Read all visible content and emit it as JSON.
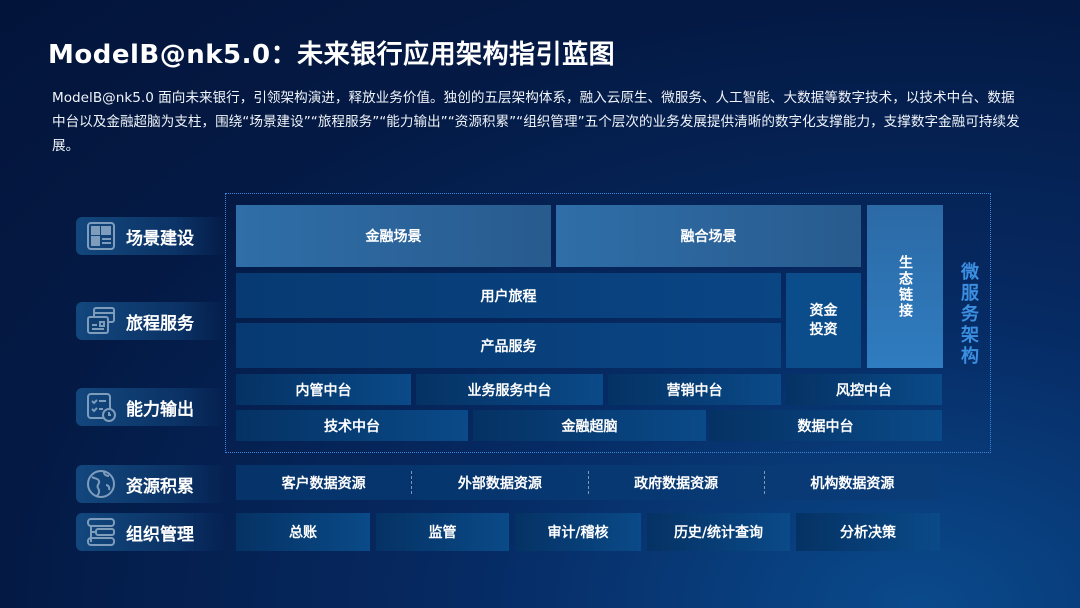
{
  "title": "ModelB@nk5.0：未来银行应用架构指引蓝图",
  "description": "ModelB@nk5.0 面向未来银行，引领架构演进，释放业务价值。独创的五层架构体系，融入云原生、微服务、人工智能、大数据等数字技术，以技术中台、数据中台以及金融超脑为支柱，围绕“场景建设”“旅程服务”“能力输出”“资源积累”“组织管理”五个层次的业务发展提供清晰的数字化支撑能力，支撑数字金融可持续发展。",
  "layers": [
    {
      "label": "场景建设",
      "icon": "dashboard-icon"
    },
    {
      "label": "旅程服务",
      "icon": "cards-icon"
    },
    {
      "label": "能力输出",
      "icon": "checklist-clock-icon"
    },
    {
      "label": "资源积累",
      "icon": "globe-icon"
    },
    {
      "label": "组织管理",
      "icon": "flowchart-icon"
    }
  ],
  "blocks": {
    "scene_finance": "金融场景",
    "scene_fusion": "融合场景",
    "eco_link": "生态链接",
    "user_journey": "用户旅程",
    "product_service": "产品服务",
    "fund_invest": "资金投资",
    "internal_mgmt": "内管中台",
    "biz_service": "业务服务中台",
    "marketing": "营销中台",
    "risk": "风控中台",
    "tech": "技术中台",
    "brain": "金融超脑",
    "data": "数据中台"
  },
  "microservice": "微服务架构",
  "resources": [
    "客户数据资源",
    "外部数据资源",
    "政府数据资源",
    "机构数据资源"
  ],
  "org": [
    "总账",
    "监管",
    "审计/稽核",
    "历史/统计查询",
    "分析决策"
  ]
}
